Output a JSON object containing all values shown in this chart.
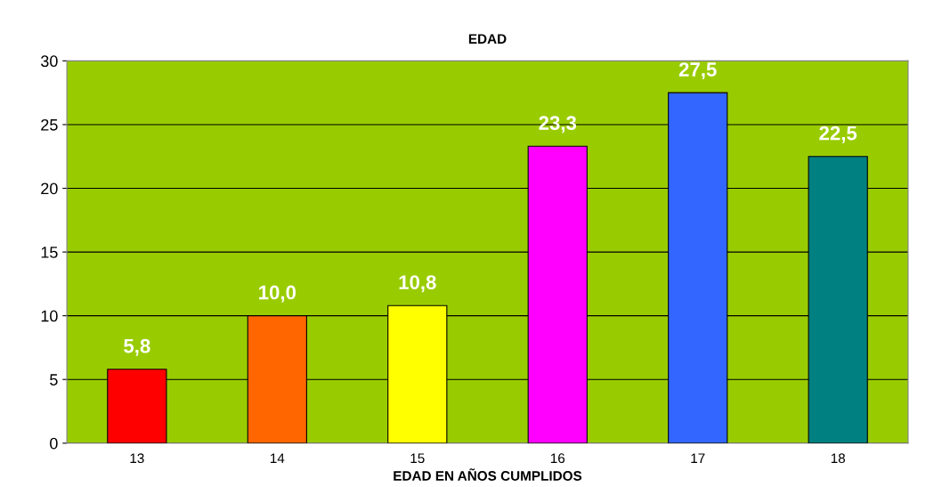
{
  "chart_data": {
    "type": "bar",
    "title": "EDAD",
    "xlabel": "EDAD EN AÑOS CUMPLIDOS",
    "categories": [
      "13",
      "14",
      "15",
      "16",
      "17",
      "18"
    ],
    "values": [
      5.8,
      10.0,
      10.8,
      23.3,
      27.5,
      22.5
    ],
    "value_labels": [
      "5,8",
      "10,0",
      "10,8",
      "23,3",
      "27,5",
      "22,5"
    ],
    "colors": [
      "#ff0000",
      "#ff6600",
      "#ffff00",
      "#ff00ff",
      "#3366ff",
      "#008080"
    ],
    "ylim": [
      0,
      30
    ],
    "yticks": [
      0,
      5,
      10,
      15,
      20,
      25,
      30
    ],
    "grid": "y",
    "legend": false
  }
}
